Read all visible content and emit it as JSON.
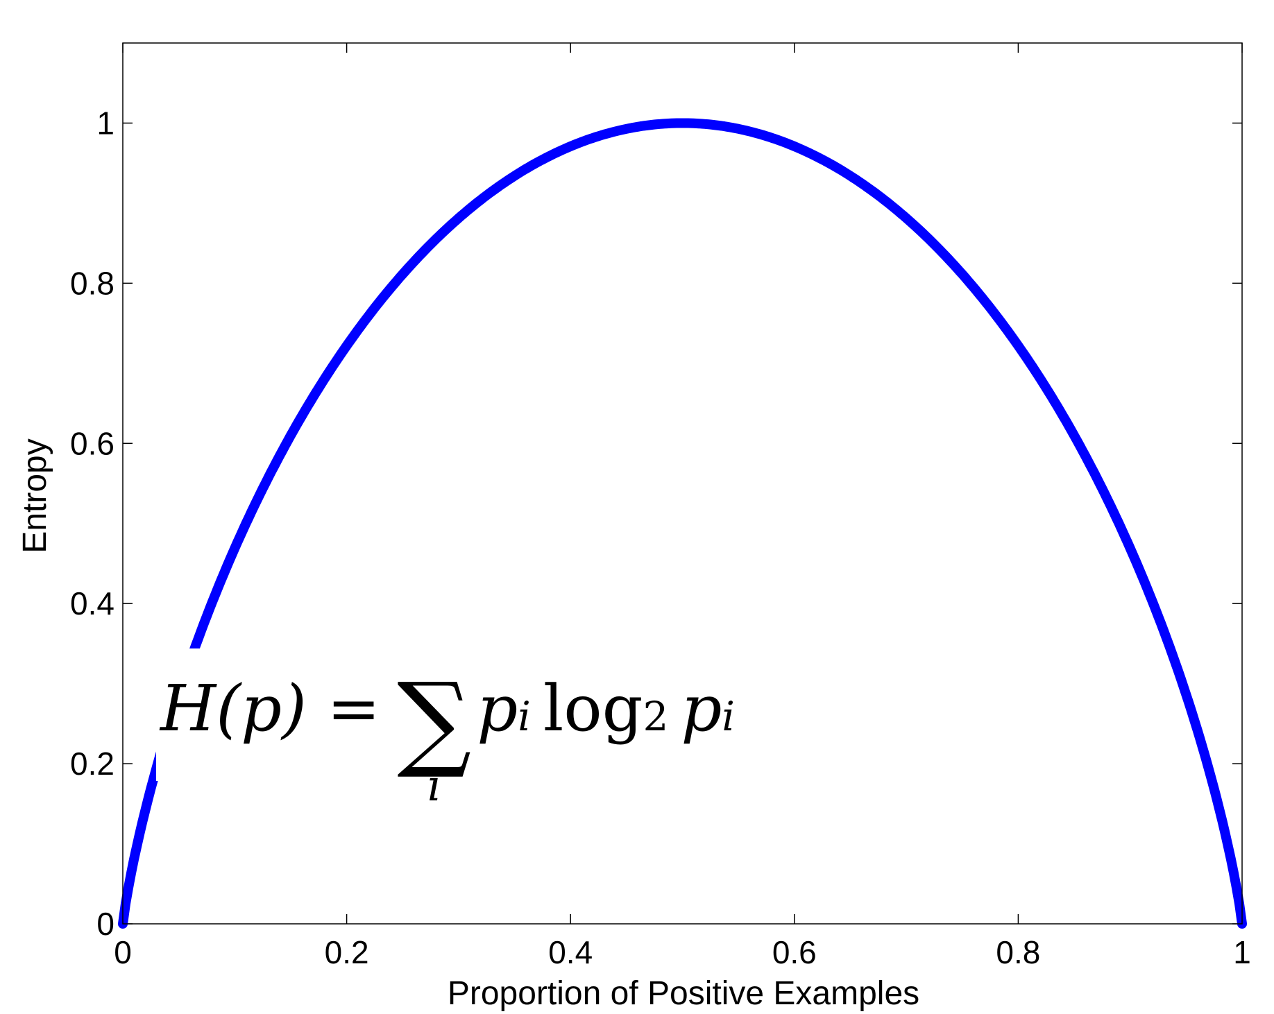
{
  "chart_data": {
    "type": "line",
    "title": "",
    "xlabel": "Proportion of Positive Examples",
    "ylabel": "Entropy",
    "xlim": [
      0,
      1
    ],
    "ylim": [
      0,
      1.1
    ],
    "xticks": [
      0,
      0.2,
      0.4,
      0.6,
      0.8,
      1
    ],
    "xtick_labels": [
      "0",
      "0.2",
      "0.4",
      "0.6",
      "0.8",
      "1"
    ],
    "yticks": [
      0,
      0.2,
      0.4,
      0.6,
      0.8,
      1
    ],
    "ytick_labels": [
      "0",
      "0.2",
      "0.4",
      "0.6",
      "0.8",
      "1"
    ],
    "grid": false,
    "series": [
      {
        "color": "#0000ff",
        "x": [
          0,
          0.01,
          0.02,
          0.05,
          0.1,
          0.15,
          0.2,
          0.25,
          0.3,
          0.35,
          0.4,
          0.45,
          0.5,
          0.55,
          0.6,
          0.65,
          0.7,
          0.75,
          0.8,
          0.85,
          0.9,
          0.95,
          0.98,
          0.99,
          1
        ],
        "y": [
          0,
          0.081,
          0.141,
          0.286,
          0.469,
          0.61,
          0.722,
          0.811,
          0.881,
          0.934,
          0.971,
          0.993,
          1,
          0.993,
          0.971,
          0.934,
          0.881,
          0.811,
          0.722,
          0.61,
          0.469,
          0.286,
          0.141,
          0.081,
          0
        ]
      }
    ],
    "annotation": {
      "lhs": "H(p) = ",
      "sum_symbol": "∑",
      "sum_index": "i",
      "p": "p",
      "sub_i": "i",
      "log": "log",
      "sub_2": "2"
    }
  }
}
